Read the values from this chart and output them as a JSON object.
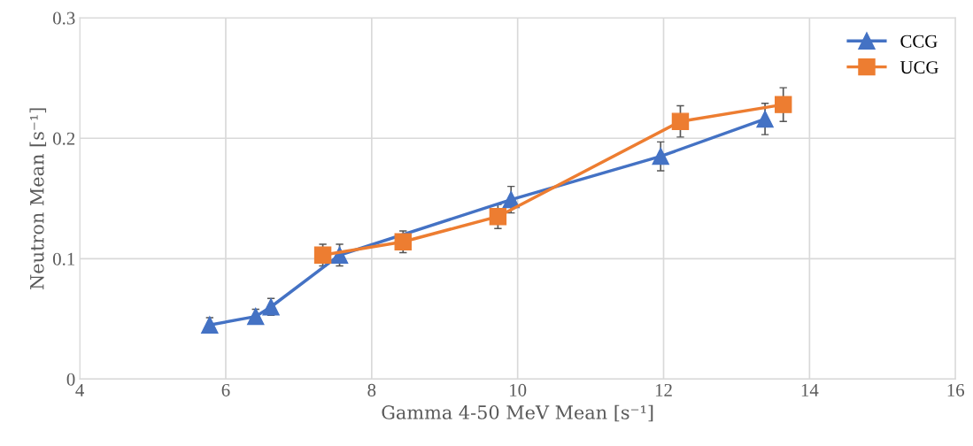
{
  "chart_data": {
    "type": "line",
    "xlabel": "Gamma 4-50 MeV Mean [s⁻¹]",
    "ylabel": "Neutron Mean [s⁻¹]",
    "xlim": [
      4,
      16
    ],
    "xticks": [
      4,
      6,
      8,
      10,
      12,
      14,
      16
    ],
    "ylim": [
      0,
      0.3
    ],
    "yticks": [
      0,
      0.1,
      0.2,
      0.3
    ],
    "grid": true,
    "legend": "top right",
    "series": [
      {
        "name": "CCG",
        "color": "#4472c4",
        "marker": "triangle",
        "x": [
          5.78,
          6.41,
          6.62,
          7.56,
          9.91,
          11.96,
          13.39
        ],
        "values": [
          0.045,
          0.052,
          0.06,
          0.103,
          0.149,
          0.185,
          0.216
        ],
        "errors": [
          0.006,
          0.006,
          0.007,
          0.009,
          0.011,
          0.012,
          0.013
        ]
      },
      {
        "name": "UCG",
        "color": "#ed7d31",
        "marker": "square",
        "x": [
          7.33,
          8.43,
          9.73,
          12.23,
          13.64
        ],
        "values": [
          0.103,
          0.114,
          0.135,
          0.214,
          0.228
        ],
        "errors": [
          0.009,
          0.009,
          0.01,
          0.013,
          0.014
        ]
      }
    ]
  }
}
